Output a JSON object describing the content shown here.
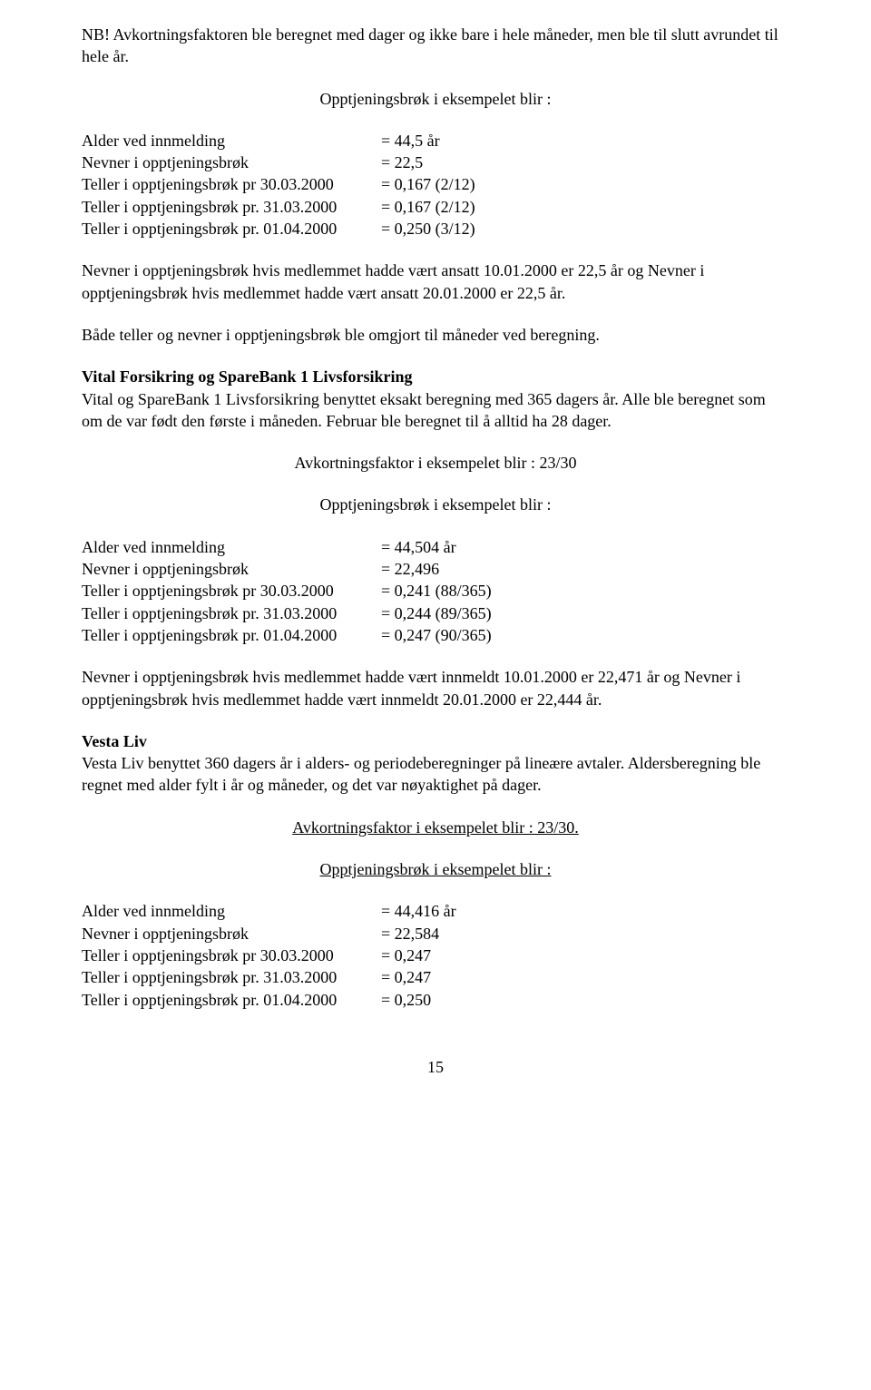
{
  "p1": "NB! Avkortningsfaktoren ble beregnet med dager og ikke bare i hele måneder, men ble til slutt avrundet til hele år.",
  "h1": "Opptjeningsbrøk i eksempelet blir :",
  "t1": {
    "rows": [
      [
        "Alder ved innmelding",
        "= 44,5 år"
      ],
      [
        "Nevner i opptjeningsbrøk",
        "= 22,5"
      ],
      [
        "Teller i opptjeningsbrøk pr 30.03.2000",
        "= 0,167 (2/12)"
      ],
      [
        "Teller i opptjeningsbrøk pr. 31.03.2000",
        "= 0,167 (2/12)"
      ],
      [
        "Teller i opptjeningsbrøk pr. 01.04.2000",
        "= 0,250 (3/12)"
      ]
    ]
  },
  "p2": "Nevner i opptjeningsbrøk hvis medlemmet hadde vært ansatt 10.01.2000 er 22,5 år og Nevner i opptjeningsbrøk hvis medlemmet hadde vært ansatt 20.01.2000 er 22,5 år.",
  "p3": "Både teller og nevner i opptjeningsbrøk ble omgjort til måneder ved beregning.",
  "h2": "Vital Forsikring og SpareBank 1 Livsforsikring",
  "p4": "Vital og SpareBank 1 Livsforsikring benyttet eksakt beregning med 365 dagers år. Alle ble beregnet som om de var født den første i måneden. Februar ble beregnet til å alltid ha 28 dager.",
  "h3": "Avkortningsfaktor i eksempelet blir : 23/30",
  "h4": "Opptjeningsbrøk i eksempelet blir  :",
  "t2": {
    "rows": [
      [
        "Alder ved innmelding",
        "= 44,504 år"
      ],
      [
        "Nevner i opptjeningsbrøk",
        "= 22,496"
      ],
      [
        "Teller i opptjeningsbrøk pr 30.03.2000",
        "= 0,241 (88/365)"
      ],
      [
        "Teller i opptjeningsbrøk pr. 31.03.2000",
        "= 0,244 (89/365)"
      ],
      [
        "Teller i opptjeningsbrøk pr. 01.04.2000",
        "= 0,247 (90/365)"
      ]
    ]
  },
  "p5": "Nevner i opptjeningsbrøk hvis medlemmet hadde vært innmeldt 10.01.2000 er 22,471 år og Nevner i opptjeningsbrøk hvis medlemmet hadde vært innmeldt 20.01.2000 er 22,444 år.",
  "h5": "Vesta Liv",
  "p6": "Vesta Liv benyttet 360 dagers år i alders- og periodeberegninger på lineære avtaler. Aldersberegning ble regnet med alder fylt i år og måneder, og det var nøyaktighet på dager.",
  "h6": "Avkortningsfaktor i eksempelet blir : 23/30.",
  "h7": "Opptjeningsbrøk i eksempelet blir :",
  "t3": {
    "rows": [
      [
        "Alder ved innmelding",
        "= 44,416 år"
      ],
      [
        "Nevner i opptjeningsbrøk",
        "= 22,584"
      ],
      [
        "Teller i opptjeningsbrøk pr 30.03.2000",
        "= 0,247"
      ],
      [
        "Teller i opptjeningsbrøk pr. 31.03.2000",
        "= 0,247"
      ],
      [
        "Teller i opptjeningsbrøk pr. 01.04.2000",
        "= 0,250"
      ]
    ]
  },
  "pageNumber": "15"
}
